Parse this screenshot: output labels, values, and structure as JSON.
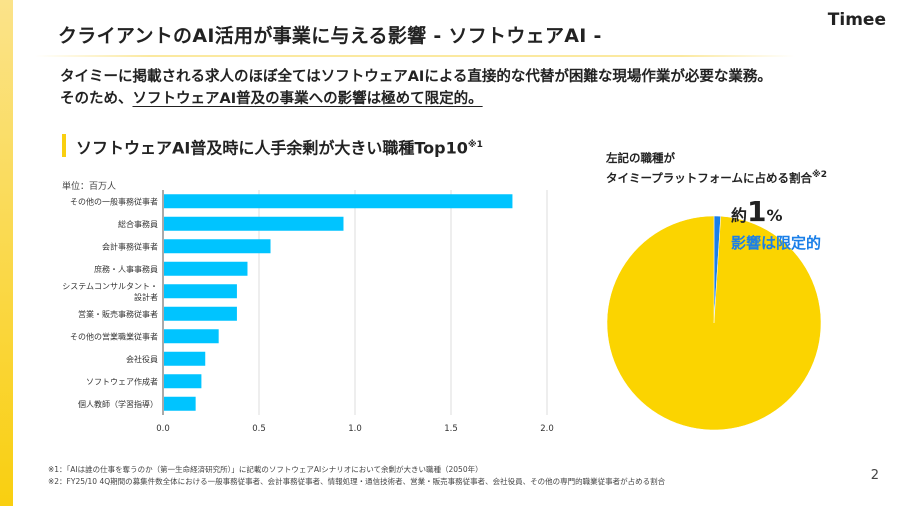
{
  "header": {
    "title": "クライアントのAI活用が事業に与える影響 - ソフトウェアAI -",
    "logo": "Timee",
    "page_number": "2"
  },
  "lead": {
    "line1": "タイミーに掲載される求人のほぼ全てはソフトウェアAIによる直接的な代替が困難な現場作業が必要な業務。",
    "line2_prefix": "そのため、",
    "line2_underlined": "ソフトウェアAI普及の事業への影響は極めて限定的。"
  },
  "section": {
    "title": "ソフトウェアAI普及時に人手余剰が大きい職種Top10",
    "note_mark": "※1"
  },
  "chart_data": [
    {
      "type": "bar",
      "orientation": "horizontal",
      "unit_label": "単位：百万人",
      "categories": [
        "その他の一般事務従事者",
        "総合事務員",
        "会計事務従事者",
        "庶務・人事事務員",
        "システムコンサルタント・設計者",
        "営業・販売事務従事者",
        "その他の営業職業従事者",
        "会社役員",
        "ソフトウェア作成者",
        "個人教師（学習指導）"
      ],
      "values": [
        1.82,
        0.94,
        0.56,
        0.44,
        0.385,
        0.385,
        0.29,
        0.22,
        0.2,
        0.17
      ],
      "xlim": [
        0,
        2.0
      ],
      "xticks": [
        "0.0",
        "0.5",
        "1.0",
        "1.5",
        "2.0"
      ],
      "grid": true,
      "color": "#00c4ff"
    },
    {
      "type": "pie",
      "title_line1": "左記の職種が",
      "title_line2": "タイミープラットフォームに占める割合",
      "note_mark": "※2",
      "slices": [
        {
          "value": 1,
          "color": "#1a7fe8"
        },
        {
          "value": 99,
          "color": "#fbd400"
        }
      ],
      "label_prefix": "約",
      "label_value": "1",
      "label_unit": "%",
      "label_sub": "影響は限定的"
    }
  ],
  "notes": [
    "※1：「AIは誰の仕事を奪うのか（第一生命経済研究所）」に記載のソフトウェアAIシナリオにおいて余剰が大きい職種（2050年）",
    "※2：FY25/10 4Q期間の募集件数全体における一般事務従事者、会計事務従事者、情報処理・通信技術者、営業・販売事務従事者、会社役員、その他の専門的職業従事者が占める割合"
  ]
}
